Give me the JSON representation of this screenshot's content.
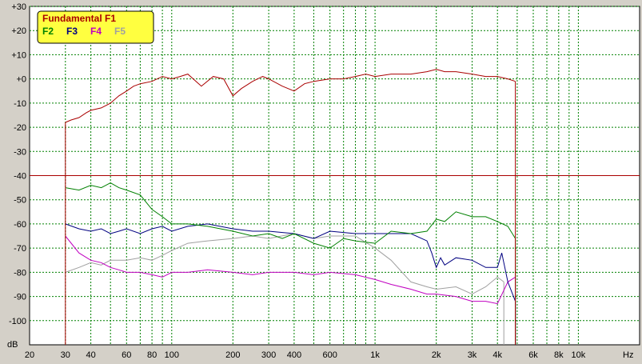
{
  "chart_data": {
    "type": "line",
    "x_scale": "log",
    "xlim": [
      20,
      20000
    ],
    "ylim": [
      -110,
      30
    ],
    "ylabel": "dB",
    "xlabel": "Hz",
    "grid": true,
    "y_ticks": [
      "+30",
      "+20",
      "+10",
      "+0",
      "-10",
      "-20",
      "-30",
      "-40",
      "-50",
      "-60",
      "-70",
      "-80",
      "-90",
      "-100"
    ],
    "y_tick_values": [
      30,
      20,
      10,
      0,
      -10,
      -20,
      -30,
      -40,
      -50,
      -60,
      -70,
      -80,
      -90,
      -100
    ],
    "x_ticks": [
      {
        "label": "20",
        "value": 20
      },
      {
        "label": "30",
        "value": 30
      },
      {
        "label": "40",
        "value": 40
      },
      {
        "label": "60",
        "value": 60
      },
      {
        "label": "80",
        "value": 80
      },
      {
        "label": "100",
        "value": 100
      },
      {
        "label": "200",
        "value": 200
      },
      {
        "label": "300",
        "value": 300
      },
      {
        "label": "400",
        "value": 400
      },
      {
        "label": "600",
        "value": 600
      },
      {
        "label": "1k",
        "value": 1000
      },
      {
        "label": "2k",
        "value": 2000
      },
      {
        "label": "3k",
        "value": 3000
      },
      {
        "label": "4k",
        "value": 4000
      },
      {
        "label": "6k",
        "value": 6000
      },
      {
        "label": "8k",
        "value": 8000
      },
      {
        "label": "10k",
        "value": 10000
      }
    ],
    "threshold_line": -40,
    "legend": {
      "placement": "top-left",
      "title": "Fundamental F1",
      "items": [
        {
          "label": "F2",
          "color": "#008000"
        },
        {
          "label": "F3",
          "color": "#000080"
        },
        {
          "label": "F4",
          "color": "#c000c0"
        },
        {
          "label": "F5",
          "color": "#a0a0a0"
        }
      ]
    },
    "series": [
      {
        "name": "Fundamental F1",
        "color": "#aa0000",
        "x": [
          30,
          32,
          35,
          38,
          40,
          45,
          50,
          55,
          60,
          65,
          70,
          80,
          90,
          100,
          110,
          120,
          140,
          160,
          180,
          200,
          220,
          250,
          280,
          300,
          350,
          400,
          450,
          500,
          600,
          700,
          800,
          900,
          1000,
          1200,
          1500,
          1800,
          2000,
          2200,
          2500,
          3000,
          3500,
          4000,
          4500,
          4900
        ],
        "y": [
          -18,
          -17,
          -16,
          -14,
          -13,
          -12,
          -10,
          -7,
          -5,
          -3,
          -2,
          -1,
          1,
          0,
          1,
          2,
          -3,
          1,
          0,
          -7,
          -4,
          -1,
          1,
          0,
          -3,
          -5,
          -2,
          -1,
          0,
          0,
          1,
          2,
          1,
          2,
          2,
          3,
          4,
          3,
          3,
          2,
          1,
          1,
          0,
          -1
        ]
      },
      {
        "name": "F2",
        "color": "#008000",
        "x": [
          30,
          35,
          40,
          45,
          50,
          55,
          60,
          70,
          80,
          90,
          100,
          120,
          150,
          200,
          250,
          300,
          350,
          400,
          500,
          600,
          700,
          800,
          1000,
          1200,
          1500,
          1800,
          2000,
          2200,
          2500,
          3000,
          3500,
          4000,
          4500,
          4900
        ],
        "y": [
          -45,
          -46,
          -44,
          -45,
          -43,
          -45,
          -46,
          -48,
          -54,
          -57,
          -60,
          -60,
          -61,
          -63,
          -65,
          -64,
          -66,
          -64,
          -68,
          -70,
          -66,
          -67,
          -68,
          -63,
          -64,
          -63,
          -58,
          -59,
          -55,
          -57,
          -57,
          -59,
          -61,
          -66
        ]
      },
      {
        "name": "F3",
        "color": "#000080",
        "x": [
          30,
          35,
          40,
          45,
          50,
          55,
          60,
          70,
          80,
          90,
          100,
          120,
          150,
          200,
          250,
          300,
          400,
          500,
          600,
          800,
          1000,
          1200,
          1500,
          1800,
          1900,
          2000,
          2100,
          2200,
          2500,
          3000,
          3500,
          4000,
          4200,
          4500,
          4900
        ],
        "y": [
          -60,
          -62,
          -63,
          -62,
          -64,
          -63,
          -62,
          -64,
          -62,
          -61,
          -63,
          -61,
          -60,
          -62,
          -63,
          -63,
          -64,
          -66,
          -63,
          -64,
          -64,
          -64,
          -64,
          -67,
          -72,
          -78,
          -74,
          -77,
          -74,
          -75,
          -78,
          -78,
          -72,
          -84,
          -92
        ]
      },
      {
        "name": "F4",
        "color": "#c000c0",
        "x": [
          30,
          35,
          40,
          45,
          50,
          55,
          60,
          70,
          80,
          90,
          100,
          120,
          150,
          200,
          250,
          300,
          400,
          500,
          600,
          800,
          1000,
          1200,
          1500,
          1800,
          2000,
          2500,
          3000,
          3500,
          4000,
          4500,
          4900
        ],
        "y": [
          -65,
          -72,
          -75,
          -76,
          -78,
          -79,
          -80,
          -80,
          -81,
          -82,
          -80,
          -80,
          -79,
          -80,
          -81,
          -80,
          -80,
          -81,
          -80,
          -81,
          -83,
          -85,
          -87,
          -89,
          -89,
          -90,
          -92,
          -92,
          -93,
          -84,
          -82
        ]
      },
      {
        "name": "F5",
        "color": "#a0a0a0",
        "x": [
          30,
          35,
          40,
          45,
          50,
          60,
          70,
          80,
          90,
          100,
          120,
          150,
          200,
          250,
          300,
          400,
          500,
          600,
          800,
          1000,
          1200,
          1500,
          1800,
          2000,
          2500,
          3000,
          3500,
          4000,
          4300
        ],
        "y": [
          -80,
          -78,
          -76,
          -77,
          -75,
          -75,
          -74,
          -75,
          -73,
          -71,
          -68,
          -67,
          -66,
          -65,
          -66,
          -64,
          -66,
          -65,
          -65,
          -70,
          -75,
          -84,
          -86,
          -87,
          -86,
          -89,
          -86,
          -82,
          -84
        ]
      }
    ]
  }
}
